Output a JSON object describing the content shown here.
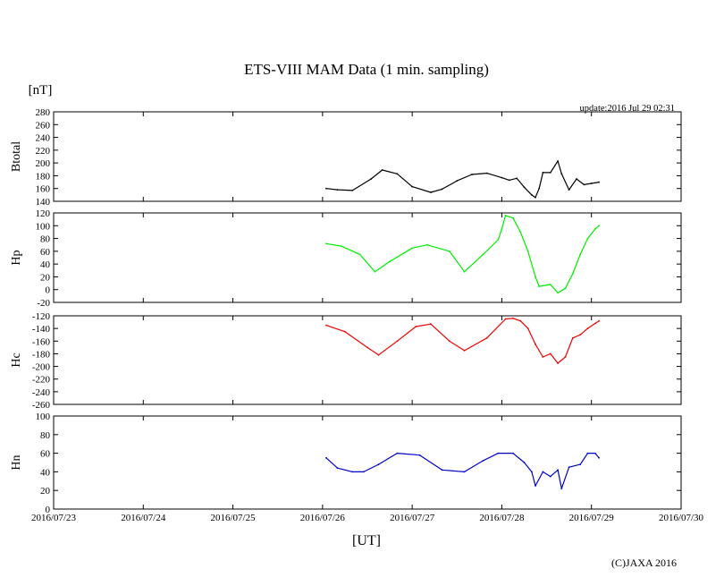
{
  "title": "ETS-VIII MAM Data (1 min. sampling)",
  "unit_label": "[nT]",
  "update_text": "update:2016 Jul 29 02:31",
  "xlabel": "[UT]",
  "copyright": "(C)JAXA 2016",
  "x_ticks": [
    "2016/07/23",
    "2016/07/24",
    "2016/07/25",
    "2016/07/26",
    "2016/07/27",
    "2016/07/28",
    "2016/07/29",
    "2016/07/30"
  ],
  "chart_data": [
    {
      "type": "line",
      "ylabel": "Btotal",
      "ylim": [
        140,
        280
      ],
      "yticks": [
        140,
        160,
        180,
        200,
        220,
        240,
        260,
        280
      ],
      "color": "#000000",
      "x": [
        "2016/07/26 01:00",
        "2016/07/26 04:00",
        "2016/07/26 08:00",
        "2016/07/26 13:00",
        "2016/07/26 16:00",
        "2016/07/26 20:00",
        "2016/07/27 00:00",
        "2016/07/27 05:00",
        "2016/07/27 08:00",
        "2016/07/27 12:00",
        "2016/07/27 16:00",
        "2016/07/27 20:00",
        "2016/07/28 00:00",
        "2016/07/28 02:00",
        "2016/07/28 04:00",
        "2016/07/28 06:00",
        "2016/07/28 08:00",
        "2016/07/28 09:00",
        "2016/07/28 10:00",
        "2016/07/28 11:00",
        "2016/07/28 13:00",
        "2016/07/28 15:00",
        "2016/07/28 16:00",
        "2016/07/28 18:00",
        "2016/07/28 20:00",
        "2016/07/28 22:00",
        "2016/07/29 00:00",
        "2016/07/29 02:00"
      ],
      "y": [
        160,
        158,
        157,
        175,
        189,
        183,
        163,
        154,
        159,
        172,
        182,
        184,
        177,
        173,
        176,
        162,
        150,
        146,
        160,
        185,
        185,
        203,
        183,
        158,
        175,
        166,
        168,
        170
      ]
    },
    {
      "type": "line",
      "ylabel": "Hp",
      "ylim": [
        -20,
        120
      ],
      "yticks": [
        -20,
        0,
        20,
        40,
        60,
        80,
        100,
        120
      ],
      "color": "#00ee00",
      "x": [
        "2016/07/26 01:00",
        "2016/07/26 05:00",
        "2016/07/26 10:00",
        "2016/07/26 14:00",
        "2016/07/26 18:00",
        "2016/07/27 00:00",
        "2016/07/27 04:00",
        "2016/07/27 10:00",
        "2016/07/27 14:00",
        "2016/07/27 19:00",
        "2016/07/27 23:00",
        "2016/07/28 00:00",
        "2016/07/28 01:00",
        "2016/07/28 03:00",
        "2016/07/28 05:00",
        "2016/07/28 07:00",
        "2016/07/28 09:00",
        "2016/07/28 10:00",
        "2016/07/28 13:00",
        "2016/07/28 15:00",
        "2016/07/28 17:00",
        "2016/07/28 19:00",
        "2016/07/28 21:00",
        "2016/07/28 23:00",
        "2016/07/29 01:00",
        "2016/07/29 02:00"
      ],
      "y": [
        72,
        68,
        55,
        28,
        44,
        65,
        70,
        60,
        28,
        55,
        78,
        95,
        116,
        112,
        90,
        60,
        20,
        5,
        8,
        -5,
        2,
        25,
        55,
        80,
        95,
        100
      ]
    },
    {
      "type": "line",
      "ylabel": "Hc",
      "ylim": [
        -260,
        -120
      ],
      "yticks": [
        -260,
        -240,
        -220,
        -200,
        -180,
        -160,
        -140,
        -120
      ],
      "color": "#ee0000",
      "x": [
        "2016/07/26 01:00",
        "2016/07/26 06:00",
        "2016/07/26 12:00",
        "2016/07/26 15:00",
        "2016/07/26 20:00",
        "2016/07/27 01:00",
        "2016/07/27 05:00",
        "2016/07/27 10:00",
        "2016/07/27 14:00",
        "2016/07/27 20:00",
        "2016/07/28 01:00",
        "2016/07/28 03:00",
        "2016/07/28 05:00",
        "2016/07/28 07:00",
        "2016/07/28 09:00",
        "2016/07/28 11:00",
        "2016/07/28 13:00",
        "2016/07/28 15:00",
        "2016/07/28 17:00",
        "2016/07/28 19:00",
        "2016/07/28 21:00",
        "2016/07/28 23:00",
        "2016/07/29 01:00",
        "2016/07/29 02:00"
      ],
      "y": [
        -135,
        -145,
        -170,
        -182,
        -160,
        -137,
        -133,
        -160,
        -175,
        -155,
        -125,
        -124,
        -128,
        -140,
        -165,
        -185,
        -180,
        -195,
        -185,
        -155,
        -150,
        -140,
        -132,
        -128
      ]
    },
    {
      "type": "line",
      "ylabel": "Hn",
      "ylim": [
        0,
        100
      ],
      "yticks": [
        0,
        20,
        40,
        60,
        80,
        100
      ],
      "color": "#0000cc",
      "x": [
        "2016/07/26 01:00",
        "2016/07/26 04:00",
        "2016/07/26 08:00",
        "2016/07/26 11:00",
        "2016/07/26 15:00",
        "2016/07/26 20:00",
        "2016/07/27 02:00",
        "2016/07/27 08:00",
        "2016/07/27 14:00",
        "2016/07/27 19:00",
        "2016/07/27 23:00",
        "2016/07/28 03:00",
        "2016/07/28 06:00",
        "2016/07/28 08:00",
        "2016/07/28 09:00",
        "2016/07/28 11:00",
        "2016/07/28 13:00",
        "2016/07/28 15:00",
        "2016/07/28 16:00",
        "2016/07/28 18:00",
        "2016/07/28 21:00",
        "2016/07/28 23:00",
        "2016/07/29 01:00",
        "2016/07/29 02:00"
      ],
      "y": [
        55,
        44,
        40,
        40,
        48,
        60,
        58,
        42,
        40,
        52,
        60,
        60,
        50,
        40,
        25,
        40,
        35,
        42,
        22,
        45,
        48,
        60,
        60,
        55
      ]
    }
  ]
}
